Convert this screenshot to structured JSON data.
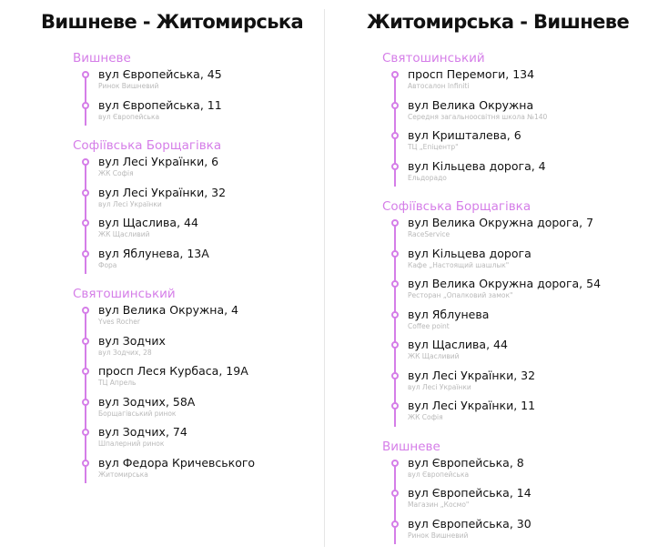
{
  "accent_color": "#d57ee8",
  "columns": [
    {
      "title": "Вишневе - Житомирська",
      "sections": [
        {
          "name": "Вишневе",
          "stops": [
            {
              "street": "вул Європейська, 45",
              "note": "Ринок Вишневий"
            },
            {
              "street": "вул Європейська, 11",
              "note": "вул Європейська"
            }
          ]
        },
        {
          "name": "Софіївська Борщагівка",
          "stops": [
            {
              "street": "вул Лесі Українки, 6",
              "note": "ЖК Софія"
            },
            {
              "street": "вул Лесі Українки, 32",
              "note": "вул Лесі Українки"
            },
            {
              "street": "вул Щаслива, 44",
              "note": "ЖК Щасливий"
            },
            {
              "street": "вул Яблунева, 13А",
              "note": "Фора"
            }
          ]
        },
        {
          "name": "Святошинський",
          "stops": [
            {
              "street": "вул Велика Окружна, 4",
              "note": "Yves Rocher"
            },
            {
              "street": "вул Зодчих",
              "note": "вул Зодчих, 28"
            },
            {
              "street": "просп Леся Курбаса, 19А",
              "note": "ТЦ Апрель"
            },
            {
              "street": "вул Зодчих, 58А",
              "note": "Борщагівський ринок"
            },
            {
              "street": "вул Зодчих, 74",
              "note": "Шпалерний ринок"
            },
            {
              "street": "вул Федора Кричевського",
              "note": "Житомирська"
            }
          ]
        }
      ]
    },
    {
      "title": "Житомирська - Вишневе",
      "sections": [
        {
          "name": "Святошинський",
          "stops": [
            {
              "street": "просп Перемоги, 134",
              "note": "Автосалон Infiniti"
            },
            {
              "street": "вул Велика Окружна",
              "note": "Середня загальноосвітня школа №140"
            },
            {
              "street": "вул Кришталева, 6",
              "note": "ТЦ „Епіцентр\""
            },
            {
              "street": "вул Кільцева дорога, 4",
              "note": "Ельдорадо"
            }
          ]
        },
        {
          "name": "Софіївська Борщагівка",
          "stops": [
            {
              "street": "вул Велика Окружна дорога, 7",
              "note": "RaceService"
            },
            {
              "street": "вул Кільцева дорога",
              "note": "Кафе „Настоящий шашлык\""
            },
            {
              "street": "вул Велика Окружна дорога, 54",
              "note": "Ресторан „Опалковий замок\""
            },
            {
              "street": "вул Яблунева",
              "note": "Coffee point"
            },
            {
              "street": "вул Щаслива, 44",
              "note": "ЖК Щасливий"
            },
            {
              "street": "вул Лесі Українки, 32",
              "note": "вул Лесі Українки"
            },
            {
              "street": "вул Лесі Українки, 11",
              "note": "ЖК Софія"
            }
          ]
        },
        {
          "name": "Вишневе",
          "stops": [
            {
              "street": "вул Європейська, 8",
              "note": "вул Європейська"
            },
            {
              "street": "вул Європейська, 14",
              "note": "Магазин „Космо\""
            },
            {
              "street": "вул Європейська, 30",
              "note": "Ринок Вишневий"
            }
          ]
        }
      ]
    }
  ]
}
